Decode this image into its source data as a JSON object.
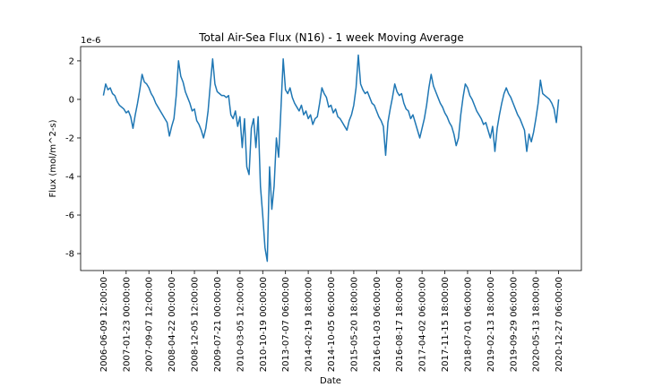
{
  "chart_data": {
    "type": "line",
    "title": "Total Air-Sea Flux (N16) - 1 week Moving Average",
    "xlabel": "Date",
    "ylabel": "Flux (mol/m^2-s)",
    "y_offset_label": "1e-6",
    "categories": [
      "2006-06-09 12:00:00",
      null,
      null,
      null,
      null,
      null,
      null,
      null,
      null,
      null,
      "2007-01-23 00:00:00",
      null,
      null,
      null,
      null,
      null,
      null,
      null,
      null,
      null,
      "2007-09-07 12:00:00",
      null,
      null,
      null,
      null,
      null,
      null,
      null,
      null,
      null,
      "2008-04-22 00:00:00",
      null,
      null,
      null,
      null,
      null,
      null,
      null,
      null,
      null,
      "2008-12-05 12:00:00",
      null,
      null,
      null,
      null,
      null,
      null,
      null,
      null,
      null,
      "2009-07-21 00:00:00",
      null,
      null,
      null,
      null,
      null,
      null,
      null,
      null,
      null,
      "2010-03-05 12:00:00",
      null,
      null,
      null,
      null,
      null,
      null,
      null,
      null,
      null,
      "2010-10-19 00:00:00",
      null,
      null,
      null,
      null,
      null,
      null,
      null,
      null,
      null,
      "2013-07-07 06:00:00",
      null,
      null,
      null,
      null,
      null,
      null,
      null,
      null,
      null,
      "2014-02-19 18:00:00",
      null,
      null,
      null,
      null,
      null,
      null,
      null,
      null,
      null,
      "2014-10-05 06:00:00",
      null,
      null,
      null,
      null,
      null,
      null,
      null,
      null,
      null,
      "2015-05-20 18:00:00",
      null,
      null,
      null,
      null,
      null,
      null,
      null,
      null,
      null,
      "2016-01-03 06:00:00",
      null,
      null,
      null,
      null,
      null,
      null,
      null,
      null,
      null,
      "2016-08-17 18:00:00",
      null,
      null,
      null,
      null,
      null,
      null,
      null,
      null,
      null,
      "2017-04-02 06:00:00",
      null,
      null,
      null,
      null,
      null,
      null,
      null,
      null,
      null,
      "2017-11-15 18:00:00",
      null,
      null,
      null,
      null,
      null,
      null,
      null,
      null,
      null,
      "2018-07-01 06:00:00",
      null,
      null,
      null,
      null,
      null,
      null,
      null,
      null,
      null,
      "2019-02-13 18:00:00",
      null,
      null,
      null,
      null,
      null,
      null,
      null,
      null,
      null,
      "2019-09-29 06:00:00",
      null,
      null,
      null,
      null,
      null,
      null,
      null,
      null,
      null,
      "2020-05-13 18:00:00",
      null,
      null,
      null,
      null,
      null,
      null,
      null,
      null,
      null,
      "2020-12-27 06:00:00"
    ],
    "values": [
      0.2,
      0.8,
      0.5,
      0.6,
      0.3,
      0.2,
      -0.1,
      -0.3,
      -0.4,
      -0.5,
      -0.7,
      -0.6,
      -0.9,
      -1.5,
      -0.8,
      -0.2,
      0.5,
      1.3,
      0.9,
      0.8,
      0.6,
      0.3,
      0.1,
      -0.2,
      -0.4,
      -0.6,
      -0.8,
      -1.0,
      -1.2,
      -1.9,
      -1.4,
      -1.0,
      0.2,
      2.0,
      1.2,
      0.9,
      0.4,
      0.1,
      -0.2,
      -0.6,
      -0.5,
      -1.1,
      -1.3,
      -1.6,
      -2.0,
      -1.5,
      -0.6,
      0.8,
      2.1,
      0.8,
      0.4,
      0.3,
      0.2,
      0.2,
      0.1,
      0.2,
      -0.8,
      -1.0,
      -0.6,
      -1.4,
      -0.9,
      -2.5,
      -1.0,
      -3.5,
      -3.9,
      -1.5,
      -1.0,
      -2.5,
      -0.9,
      -4.5,
      -6.0,
      -7.7,
      -8.4,
      -3.5,
      -5.7,
      -4.5,
      -2.0,
      -3.0,
      -0.5,
      2.1,
      0.5,
      0.3,
      0.6,
      0.1,
      -0.2,
      -0.4,
      -0.6,
      -0.3,
      -0.8,
      -0.6,
      -1.0,
      -0.8,
      -1.3,
      -1.0,
      -0.9,
      -0.2,
      0.6,
      0.3,
      0.1,
      -0.4,
      -0.3,
      -0.7,
      -0.5,
      -0.9,
      -1.0,
      -1.2,
      -1.4,
      -1.6,
      -1.1,
      -0.8,
      -0.3,
      0.6,
      2.3,
      0.8,
      0.5,
      0.3,
      0.4,
      0.1,
      -0.2,
      -0.3,
      -0.6,
      -0.9,
      -1.1,
      -1.4,
      -2.9,
      -1.2,
      -0.5,
      0.1,
      0.8,
      0.4,
      0.2,
      0.3,
      -0.2,
      -0.5,
      -0.6,
      -1.0,
      -0.8,
      -1.2,
      -1.6,
      -2.0,
      -1.5,
      -1.0,
      -0.3,
      0.6,
      1.3,
      0.7,
      0.4,
      0.1,
      -0.2,
      -0.4,
      -0.7,
      -0.9,
      -1.2,
      -1.4,
      -1.8,
      -2.4,
      -2.0,
      -0.8,
      0.1,
      0.8,
      0.6,
      0.2,
      0.0,
      -0.3,
      -0.6,
      -0.8,
      -1.0,
      -1.3,
      -1.2,
      -1.6,
      -2.0,
      -1.4,
      -2.7,
      -1.5,
      -0.8,
      -0.2,
      0.3,
      0.6,
      0.3,
      0.1,
      -0.2,
      -0.5,
      -0.8,
      -1.0,
      -1.3,
      -1.6,
      -2.7,
      -1.8,
      -2.2,
      -1.7,
      -1.0,
      -0.2,
      1.0,
      0.3,
      0.2,
      0.1,
      0.0,
      -0.2,
      -0.5,
      -1.2,
      0.0
    ],
    "color": "#1f77b4",
    "ylim": [
      -8.88,
      2.74
    ],
    "yticks": [
      2,
      0,
      -2,
      -4,
      -6,
      -8
    ]
  }
}
